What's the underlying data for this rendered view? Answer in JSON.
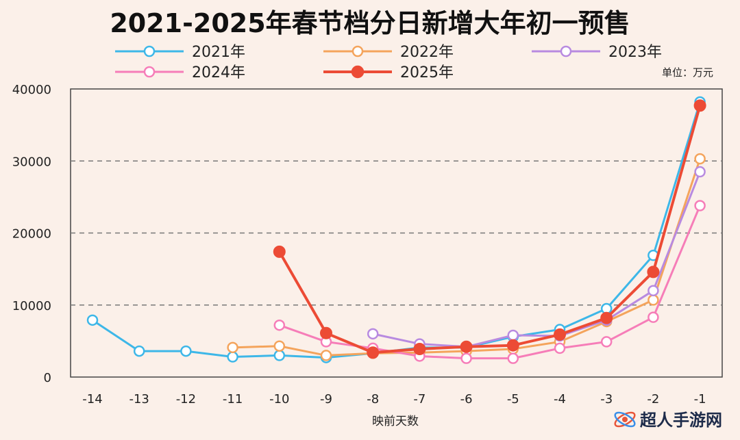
{
  "chart_data": {
    "type": "line",
    "title": "2021-2025年春节档分日新增大年初一预售",
    "unit": "单位：万元",
    "xlabel": "映前天数",
    "ylabel": "",
    "ylim": [
      0,
      40000
    ],
    "yticks": [
      "0",
      "10000",
      "20000",
      "30000",
      "40000"
    ],
    "categories": [
      "-14",
      "-13",
      "-12",
      "-11",
      "-10",
      "-9",
      "-8",
      "-7",
      "-6",
      "-5",
      "-4",
      "-3",
      "-2",
      "-1"
    ],
    "grid": "horizontal dashed",
    "legend_position": "top",
    "series": [
      {
        "name": "2021年",
        "color": "#3db7e8",
        "filled": false,
        "values": [
          7900,
          3600,
          3600,
          2800,
          3000,
          2700,
          3300,
          4100,
          4100,
          5600,
          6600,
          9500,
          16900,
          38200
        ]
      },
      {
        "name": "2022年",
        "color": "#f4a45c",
        "filled": false,
        "values": [
          null,
          null,
          null,
          4100,
          4300,
          3000,
          3300,
          3400,
          3600,
          3900,
          4900,
          7700,
          10700,
          30300
        ]
      },
      {
        "name": "2023年",
        "color": "#b88ae0",
        "filled": false,
        "values": [
          null,
          null,
          null,
          null,
          null,
          null,
          6000,
          4600,
          4200,
          5800,
          5700,
          7900,
          12000,
          28500
        ]
      },
      {
        "name": "2024年",
        "color": "#f67db8",
        "filled": false,
        "values": [
          null,
          null,
          null,
          null,
          7200,
          4900,
          4000,
          2900,
          2600,
          2600,
          4000,
          4900,
          8300,
          23800
        ]
      },
      {
        "name": "2025年",
        "color": "#ec4b35",
        "filled": true,
        "values": [
          null,
          null,
          null,
          null,
          17400,
          6100,
          3400,
          3900,
          4200,
          4400,
          5900,
          8200,
          14600,
          37700
        ]
      }
    ]
  },
  "watermark": {
    "text": "超人手游网"
  }
}
